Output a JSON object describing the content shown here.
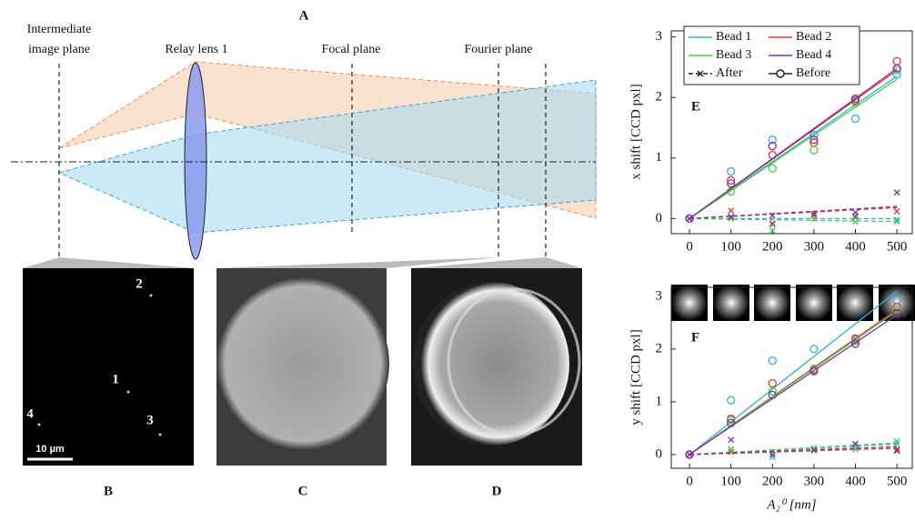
{
  "panel_a": {
    "label": "A",
    "texts": [
      "Intermediate",
      "image plane",
      "Relay lens 1",
      "Focal plane",
      "Fourier plane"
    ]
  },
  "panel_b": {
    "label": "B",
    "beads": [
      "1",
      "2",
      "3",
      "4"
    ],
    "scale_bar": "10 µm"
  },
  "panel_c": {
    "label": "C"
  },
  "panel_d": {
    "label": "D"
  },
  "chart_data": [
    {
      "type": "line",
      "panel_label": "E",
      "y_label": "x shift [CCD pxl]",
      "legend": true,
      "x": [
        0,
        100,
        200,
        300,
        400,
        500
      ],
      "fit_x": [
        0,
        500
      ],
      "xlim": [
        -44,
        537
      ],
      "ylim": [
        -0.25,
        3.1
      ],
      "xticks": [
        0,
        100,
        200,
        300,
        400,
        500
      ],
      "yticks": [
        0,
        1,
        2,
        3
      ],
      "styles": [
        {
          "name": "After",
          "dash": true,
          "marker": "x"
        },
        {
          "name": "Before",
          "dash": false,
          "marker": "o"
        }
      ],
      "series": [
        {
          "name": "Bead 1",
          "color": "#2ab0e8",
          "lines": [
            {
              "values": [
                0,
                0.02,
                -0.1,
                0.05,
                0.05,
                -0.02
              ],
              "fit": [
                0,
                0.0
              ]
            },
            {
              "values": [
                0,
                0.78,
                1.3,
                1.38,
                1.65,
                2.38
              ],
              "fit": [
                0,
                2.35
              ]
            }
          ]
        },
        {
          "name": "Bead 2",
          "color": "#e8352a",
          "lines": [
            {
              "values": [
                0,
                0.13,
                -0.08,
                0.05,
                0.02,
                0.12
              ],
              "fit": [
                0,
                0.18
              ]
            },
            {
              "values": [
                0,
                0.63,
                1.05,
                1.25,
                1.95,
                2.6
              ],
              "fit": [
                0,
                2.45
              ]
            }
          ]
        },
        {
          "name": "Bead 3",
          "color": "#3ad63a",
          "lines": [
            {
              "values": [
                0,
                0.0,
                -0.2,
                0.0,
                -0.05,
                -0.05
              ],
              "fit": [
                0,
                -0.05
              ]
            },
            {
              "values": [
                0,
                0.45,
                0.83,
                1.13,
                1.92,
                2.45
              ],
              "fit": [
                0,
                2.3
              ]
            }
          ]
        },
        {
          "name": "Bead 4",
          "color": "#8a2aa8",
          "lines": [
            {
              "values": [
                0,
                0.03,
                0.05,
                0.08,
                0.1,
                0.43
              ],
              "fit": [
                0,
                0.2
              ]
            },
            {
              "values": [
                0,
                0.58,
                1.2,
                1.3,
                1.98,
                2.48
              ],
              "fit": [
                0,
                2.48
              ]
            }
          ]
        }
      ]
    },
    {
      "type": "line",
      "panel_label": "F",
      "y_label": "y shift [CCD pxl]",
      "x_label": "A₂⁰ [nm]",
      "legend": false,
      "x": [
        0,
        100,
        200,
        300,
        400,
        500
      ],
      "fit_x": [
        0,
        500
      ],
      "xlim": [
        -44,
        537
      ],
      "ylim": [
        -0.26,
        3.17
      ],
      "xticks": [
        0,
        100,
        200,
        300,
        400,
        500
      ],
      "yticks": [
        0,
        1,
        2,
        3
      ],
      "styles": [
        {
          "dash": true,
          "marker": "x"
        },
        {
          "dash": false,
          "marker": "o"
        }
      ],
      "series": [
        {
          "color": "#2ab0e8",
          "lines": [
            {
              "values": [
                0,
                0.1,
                -0.05,
                0.1,
                0.1,
                0.25
              ],
              "fit": [
                0,
                0.2
              ]
            },
            {
              "values": [
                0,
                1.03,
                1.78,
                2.0,
                2.18,
                2.93
              ],
              "fit": [
                0,
                3.1
              ]
            }
          ]
        },
        {
          "color": "#e8352a",
          "lines": [
            {
              "values": [
                0,
                0.05,
                0.05,
                0.1,
                0.2,
                0.1
              ],
              "fit": [
                0,
                0.12
              ]
            },
            {
              "values": [
                0,
                0.68,
                1.35,
                1.62,
                2.2,
                2.8
              ],
              "fit": [
                0,
                2.75
              ]
            }
          ]
        },
        {
          "color": "#3ad63a",
          "lines": [
            {
              "values": [
                0,
                0.1,
                0.05,
                0.12,
                0.15,
                0.2
              ],
              "fit": [
                0,
                0.22
              ]
            },
            {
              "values": [
                0,
                0.65,
                1.2,
                1.6,
                2.15,
                2.75
              ],
              "fit": [
                0,
                2.72
              ]
            }
          ]
        },
        {
          "color": "#8a2aa8",
          "lines": [
            {
              "values": [
                0,
                0.28,
                0.0,
                0.08,
                0.2,
                0.07
              ],
              "fit": [
                0,
                0.15
              ]
            },
            {
              "values": [
                0,
                0.6,
                1.13,
                1.58,
                2.1,
                2.68
              ],
              "fit": [
                0,
                2.65
              ]
            }
          ]
        }
      ]
    }
  ]
}
